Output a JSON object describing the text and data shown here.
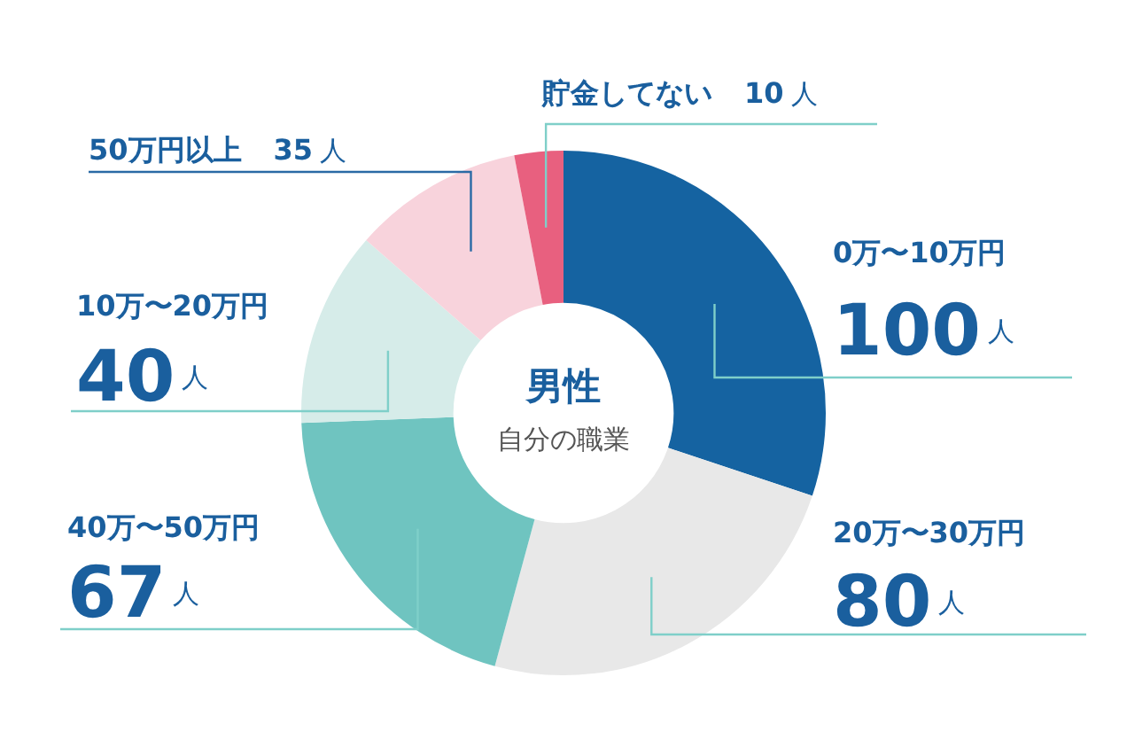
{
  "chart_data": {
    "type": "donut",
    "title": "男性",
    "subtitle": "自分の職業",
    "categories": [
      "0万〜10万円",
      "20万〜30万円",
      "40万〜50万円",
      "10万〜20万円",
      "50万円以上",
      "貯金してない"
    ],
    "values": [
      100,
      80,
      67,
      40,
      35,
      10
    ],
    "colors": [
      "#1563a1",
      "#e8e8e8",
      "#6fc4c0",
      "#d6ece9",
      "#f8d3dc",
      "#e8607f"
    ],
    "value_labels": [
      "100人",
      "80人",
      "67人",
      "40人",
      "35人",
      "10人"
    ],
    "legend": false
  }
}
